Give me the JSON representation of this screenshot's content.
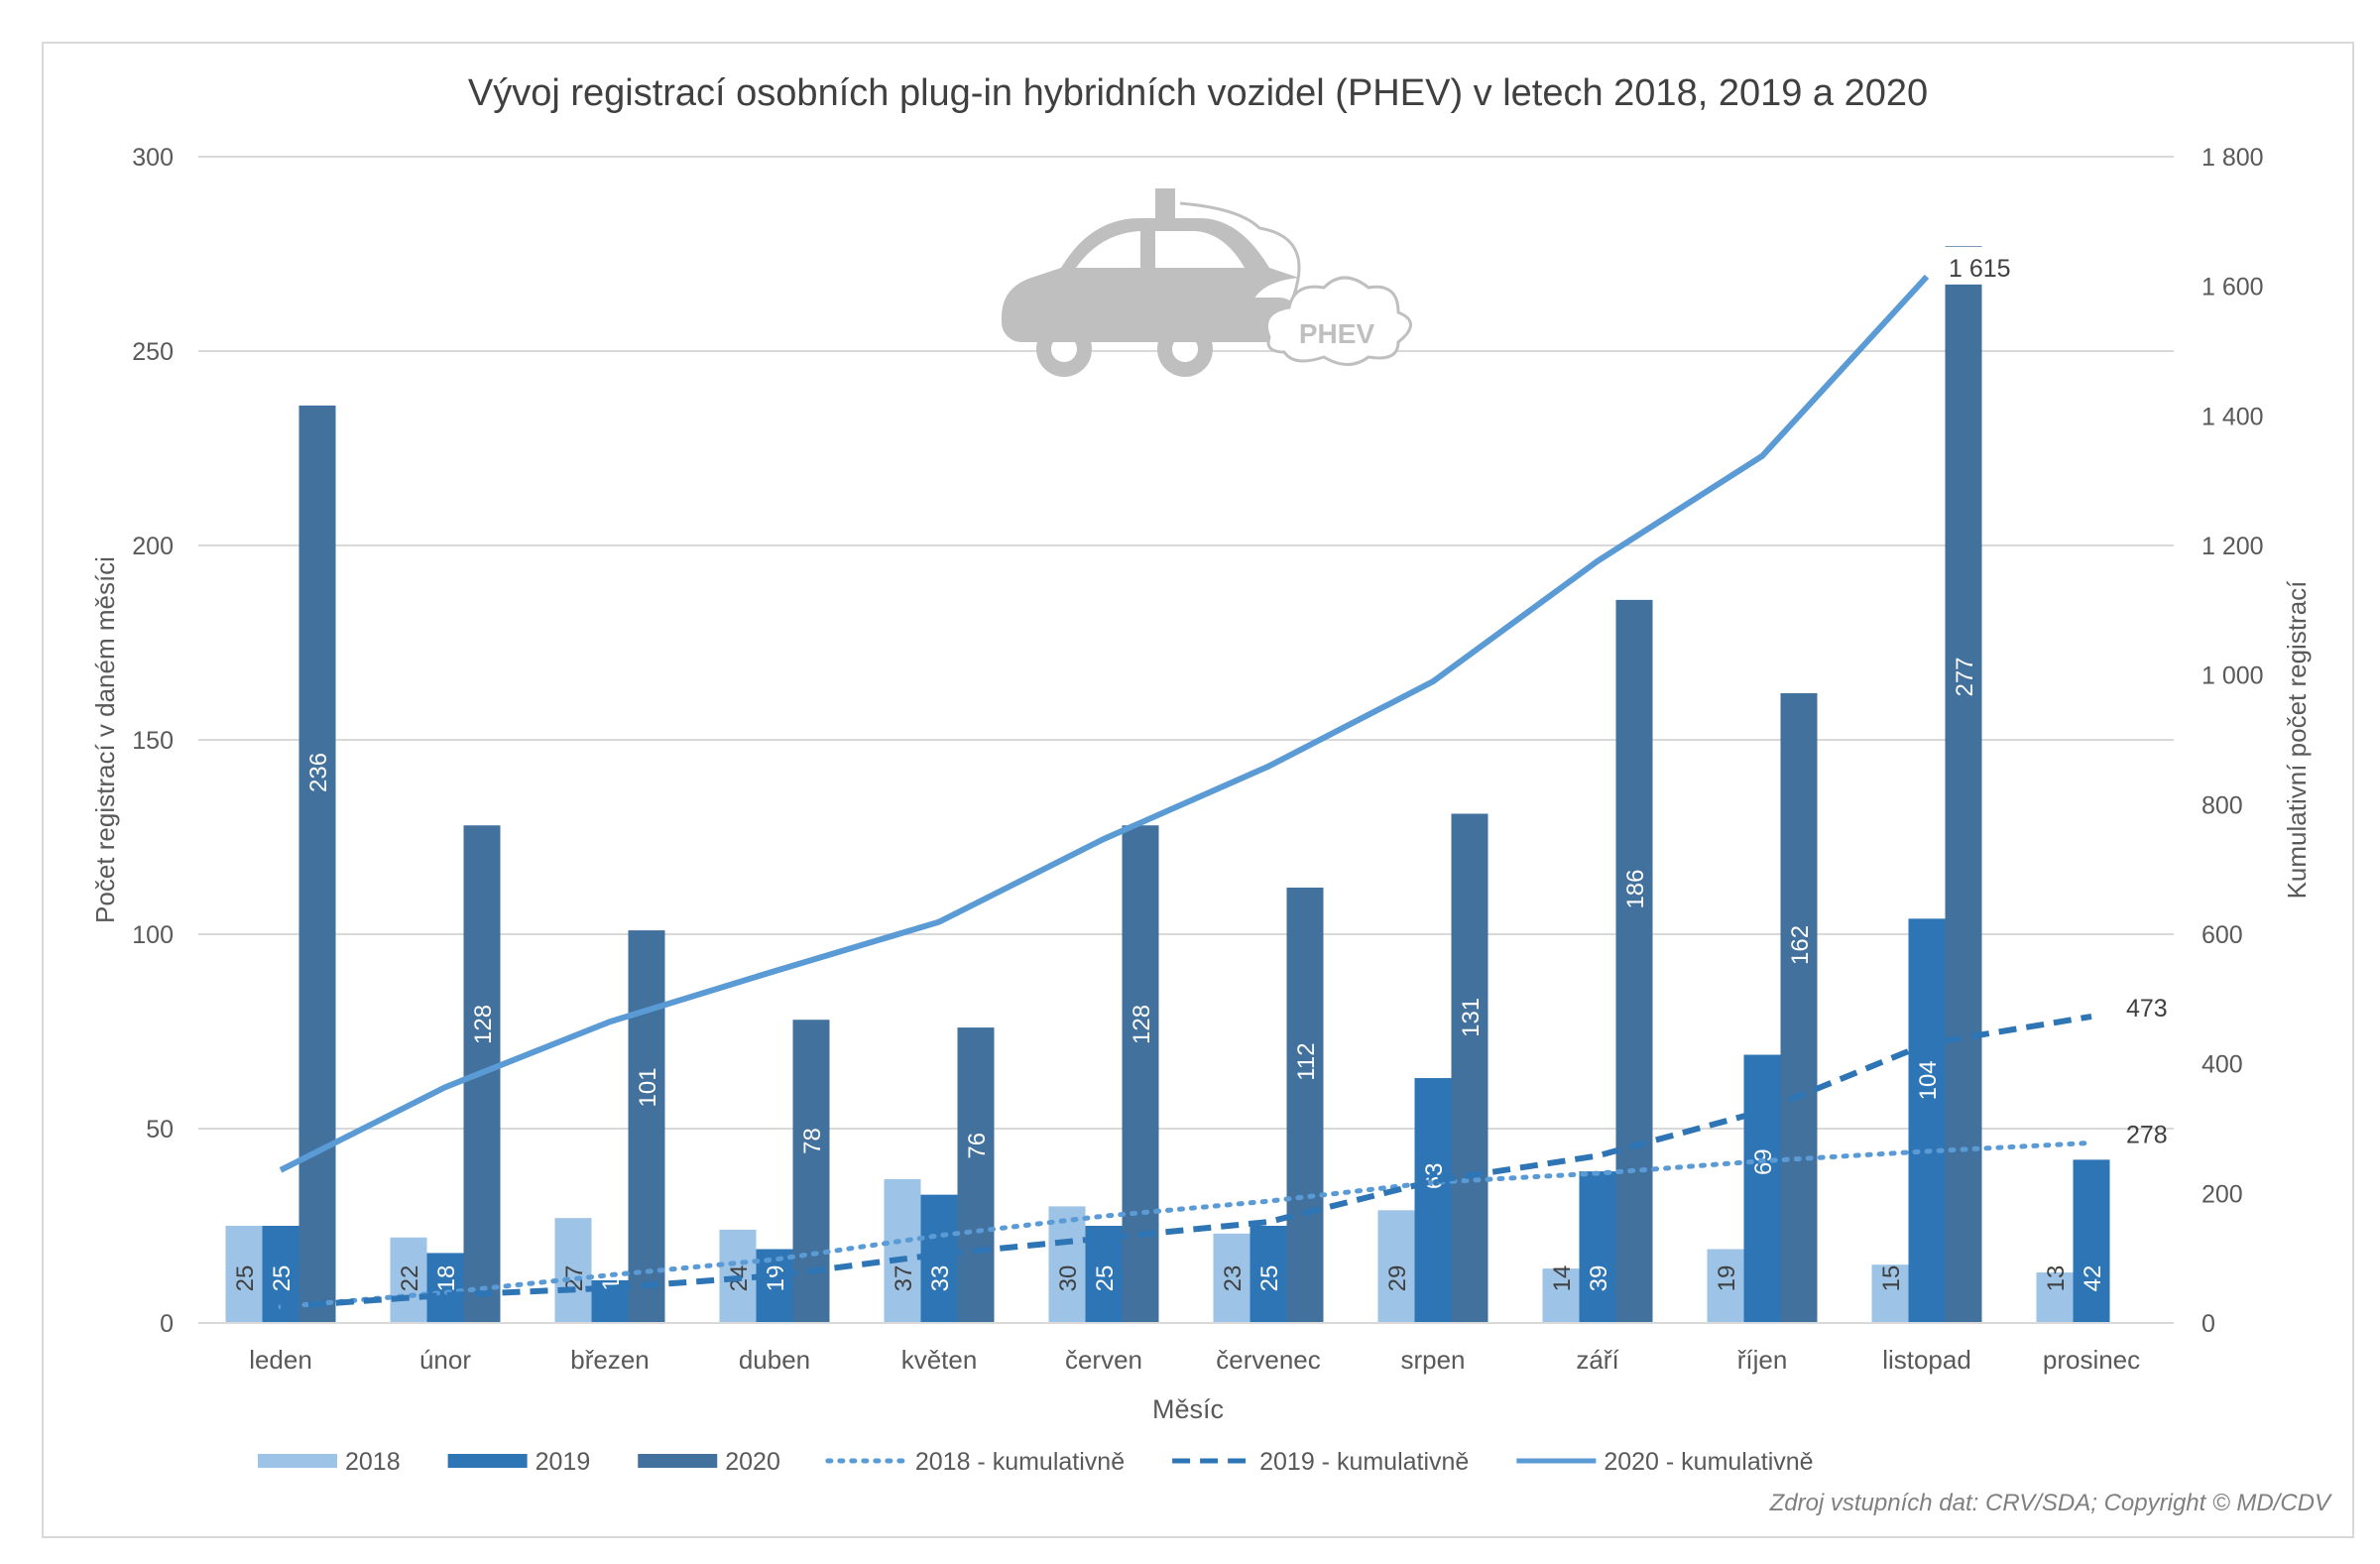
{
  "chart_data": {
    "type": "bar",
    "title": "Vývoj registrací osobních plug-in hybridních vozidel (PHEV) v letech 2018, 2019 a 2020",
    "xlabel": "Měsíc",
    "ylabel": "Počet registrací v daném měsíci",
    "y2label": "Kumulativní počet registrací",
    "ylim": [
      0,
      300
    ],
    "y2lim": [
      0,
      1800
    ],
    "yticks": [
      "0",
      "50",
      "100",
      "150",
      "200",
      "250",
      "300"
    ],
    "y2ticks": [
      "0",
      "200",
      "400",
      "600",
      "800",
      "1 000",
      "1 200",
      "1 400",
      "1 600",
      "1 800"
    ],
    "grid": true,
    "legend": "bottom",
    "categories": [
      "leden",
      "únor",
      "březen",
      "duben",
      "květen",
      "červen",
      "červenec",
      "srpen",
      "září",
      "říjen",
      "listopad",
      "prosinec"
    ],
    "series": [
      {
        "name": "2018",
        "kind": "bar",
        "color": "#9dc3e6",
        "values": [
          25,
          22,
          27,
          24,
          37,
          30,
          23,
          29,
          14,
          19,
          15,
          13
        ]
      },
      {
        "name": "2019",
        "kind": "bar",
        "color": "#2e75b6",
        "values": [
          25,
          18,
          11,
          19,
          33,
          25,
          25,
          63,
          39,
          69,
          104,
          42
        ]
      },
      {
        "name": "2020",
        "kind": "bar",
        "color": "#41719c",
        "values": [
          236,
          128,
          101,
          78,
          76,
          128,
          112,
          131,
          186,
          162,
          277,
          null
        ]
      },
      {
        "name": "2018 - kumulativně",
        "kind": "line",
        "style": "dotted",
        "color": "#5b9bd5",
        "axis": "right",
        "values": [
          25,
          47,
          74,
          98,
          135,
          165,
          188,
          217,
          231,
          250,
          265,
          278
        ],
        "end_label": "278"
      },
      {
        "name": "2019 - kumulativně",
        "kind": "line",
        "style": "dashed",
        "color": "#2e75b6",
        "axis": "right",
        "values": [
          25,
          43,
          54,
          73,
          106,
          131,
          156,
          219,
          258,
          327,
          431,
          473
        ],
        "end_label": "473"
      },
      {
        "name": "2020 - kumulativně",
        "kind": "line",
        "style": "solid",
        "color": "#5b9bd5",
        "axis": "right",
        "values": [
          236,
          364,
          465,
          543,
          619,
          747,
          859,
          990,
          1176,
          1338,
          1615,
          null
        ],
        "end_label": "1 615"
      }
    ],
    "logo_text": "PHEV",
    "source": "Zdroj vstupních dat: CRV/SDA; Copyright © MD/CDV"
  }
}
